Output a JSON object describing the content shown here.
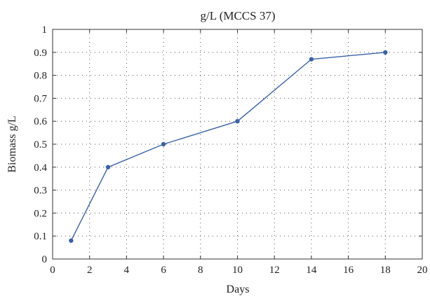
{
  "chart_data": {
    "type": "line",
    "title": "g/L (MCCS 37)",
    "xlabel": "Days",
    "ylabel": "Biomass g/L",
    "xlim": [
      0,
      20
    ],
    "ylim": [
      0,
      1
    ],
    "x_ticks": [
      "0",
      "2",
      "4",
      "6",
      "8",
      "10",
      "12",
      "14",
      "16",
      "18",
      "20"
    ],
    "y_ticks": [
      "0",
      "0.1",
      "0.2",
      "0.3",
      "0.4",
      "0.5",
      "0.6",
      "0.7",
      "0.8",
      "0.9",
      "1"
    ],
    "grid": "dotted",
    "series": [
      {
        "color": "#3a62a8",
        "x": [
          1,
          3,
          6,
          10,
          14,
          18
        ],
        "y": [
          0.08,
          0.4,
          0.5,
          0.6,
          0.87,
          0.9
        ]
      }
    ]
  }
}
